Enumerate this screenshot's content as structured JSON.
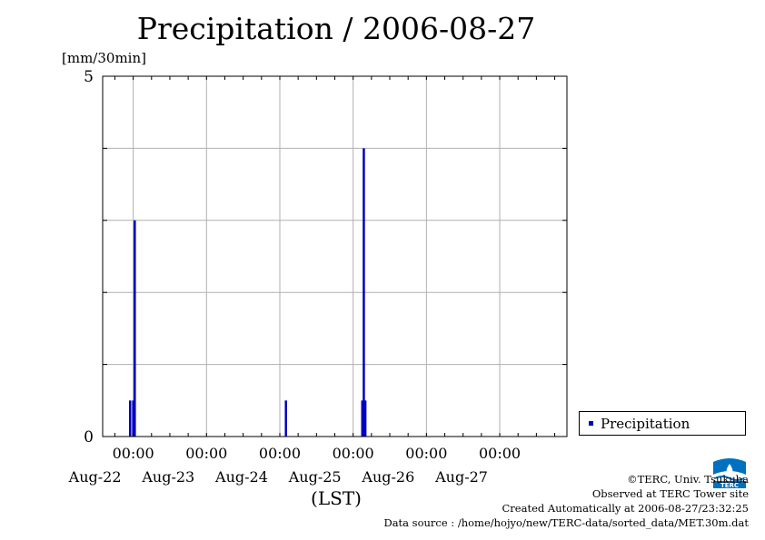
{
  "title": "Precipitation / 2006-08-27",
  "colors": {
    "series": "#0000c0",
    "grid": "#b0b0b0",
    "logo": "#0070c0"
  },
  "legend": {
    "label": "Precipitation"
  },
  "credits": {
    "organization": "©TERC, Univ. Tsukuba",
    "site": "Observed at TERC Tower site",
    "created": "Created Automatically at 2006-08-27/23:32:25",
    "source": "Data source : /home/hojyo/new/TERC-data/sorted_data/MET.30m.dat"
  },
  "logo_icon": "terc-logo-icon",
  "chart_data": {
    "type": "bar",
    "title": "Precipitation / 2006-08-27",
    "ylabel": "[mm/30min]",
    "xlabel": "(LST)",
    "ylim": [
      0,
      5
    ],
    "y_tick_labels": [
      "0",
      "5"
    ],
    "x_range_days": [
      "2006-08-21 14:00",
      "2006-08-27 22:00"
    ],
    "x_tick_labels": [
      {
        "time": "00:00",
        "date": "Aug-22",
        "at": "2006-08-22 00:00"
      },
      {
        "time": "00:00",
        "date": "Aug-23",
        "at": "2006-08-23 00:00"
      },
      {
        "time": "00:00",
        "date": "Aug-24",
        "at": "2006-08-24 00:00"
      },
      {
        "time": "00:00",
        "date": "Aug-25",
        "at": "2006-08-25 00:00"
      },
      {
        "time": "00:00",
        "date": "Aug-26",
        "at": "2006-08-26 00:00"
      },
      {
        "time": "00:00",
        "date": "Aug-27",
        "at": "2006-08-27 00:00"
      }
    ],
    "xlabel_text": "(LST)",
    "grid": true,
    "legend_position": "bottom-right, outside plot",
    "series": [
      {
        "name": "Precipitation",
        "points": [
          {
            "t": "2006-08-21 23:00",
            "value": 0.5
          },
          {
            "t": "2006-08-22 00:00",
            "value": 0.5
          },
          {
            "t": "2006-08-22 00:30",
            "value": 3.0
          },
          {
            "t": "2006-08-24 02:00",
            "value": 0.5
          },
          {
            "t": "2006-08-25 03:00",
            "value": 0.5
          },
          {
            "t": "2006-08-25 03:30",
            "value": 4.0
          },
          {
            "t": "2006-08-25 04:00",
            "value": 0.5
          }
        ]
      }
    ]
  }
}
